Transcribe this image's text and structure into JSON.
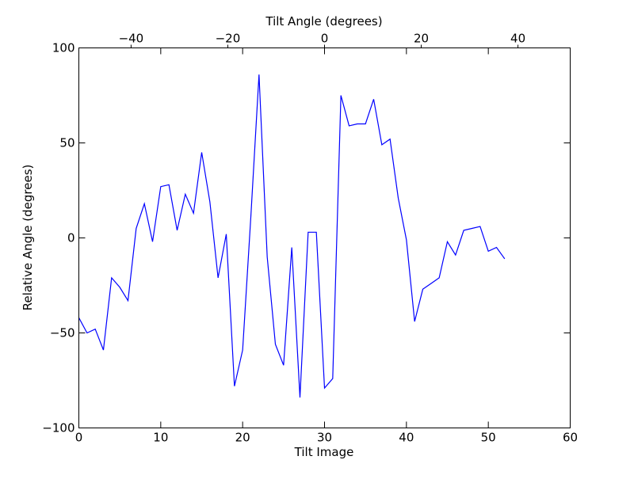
{
  "chart_data": {
    "type": "line",
    "title": "",
    "xlabel": "Tilt Image",
    "ylabel": "Relative Angle (degrees)",
    "x2label": "Tilt Angle (degrees)",
    "xlim": [
      0,
      60
    ],
    "ylim": [
      -100,
      100
    ],
    "x2lim": [
      -50.8,
      50.8
    ],
    "xticks": [
      0,
      10,
      20,
      30,
      40,
      50,
      60
    ],
    "yticks": [
      -100,
      -50,
      0,
      50,
      100
    ],
    "x2ticks": [
      -40,
      -20,
      0,
      20,
      40
    ],
    "xtick_labels": [
      "0",
      "10",
      "20",
      "30",
      "40",
      "50",
      "60"
    ],
    "ytick_labels": [
      "−100",
      "−50",
      "0",
      "50",
      "100"
    ],
    "x2tick_labels": [
      "−40",
      "−20",
      "0",
      "20",
      "40"
    ],
    "grid": false,
    "legend": "none",
    "series": [
      {
        "color": "#0000ff",
        "x": [
          0,
          1,
          2,
          3,
          4,
          5,
          6,
          7,
          8,
          9,
          10,
          11,
          12,
          13,
          14,
          15,
          16,
          17,
          18,
          19,
          20,
          21,
          22,
          23,
          24,
          25,
          26,
          27,
          28,
          29,
          30,
          31,
          32,
          33,
          34,
          35,
          36,
          37,
          38,
          39,
          40,
          41,
          42,
          43,
          44,
          45,
          46,
          47,
          48,
          49,
          50,
          51,
          52
        ],
        "y": [
          -42,
          -50,
          -48,
          -59,
          -21,
          -26,
          -33,
          5,
          18,
          -2,
          27,
          28,
          4,
          23,
          13,
          45,
          19,
          -21,
          2,
          -78,
          -59,
          11,
          86,
          -10,
          -56,
          -67,
          -5,
          -84,
          3,
          3,
          -79,
          -74,
          75,
          59,
          60,
          60,
          73,
          49,
          52,
          21,
          -1,
          -44,
          -27,
          -24,
          -21,
          -2,
          -9,
          4,
          5,
          6,
          -7,
          -5,
          -11
        ]
      }
    ]
  }
}
